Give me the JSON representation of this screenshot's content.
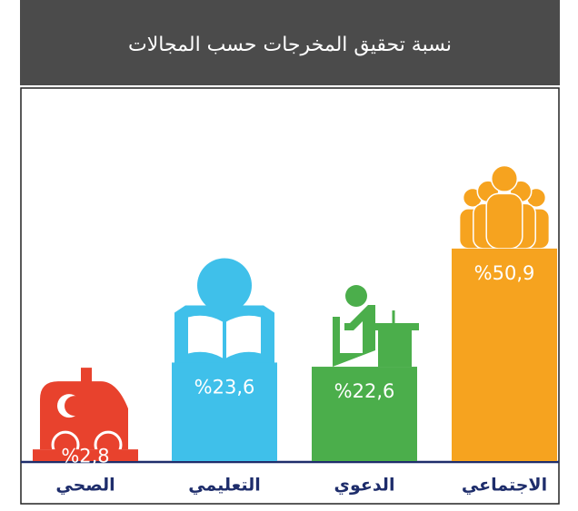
{
  "chart_data": {
    "type": "bar",
    "title": "نسبة تحقيق المخرجات حسب المجالات",
    "categories": [
      "الصحي",
      "التعليمي",
      "الدعوي",
      "الاجتماعي"
    ],
    "values": [
      2.8,
      23.6,
      22.6,
      50.9
    ],
    "value_labels": [
      "%2,8",
      "%23,6",
      "%22,6",
      "%50,9"
    ],
    "colors": [
      "#e8422d",
      "#3fc0ea",
      "#4bae4b",
      "#f6a31f"
    ]
  }
}
